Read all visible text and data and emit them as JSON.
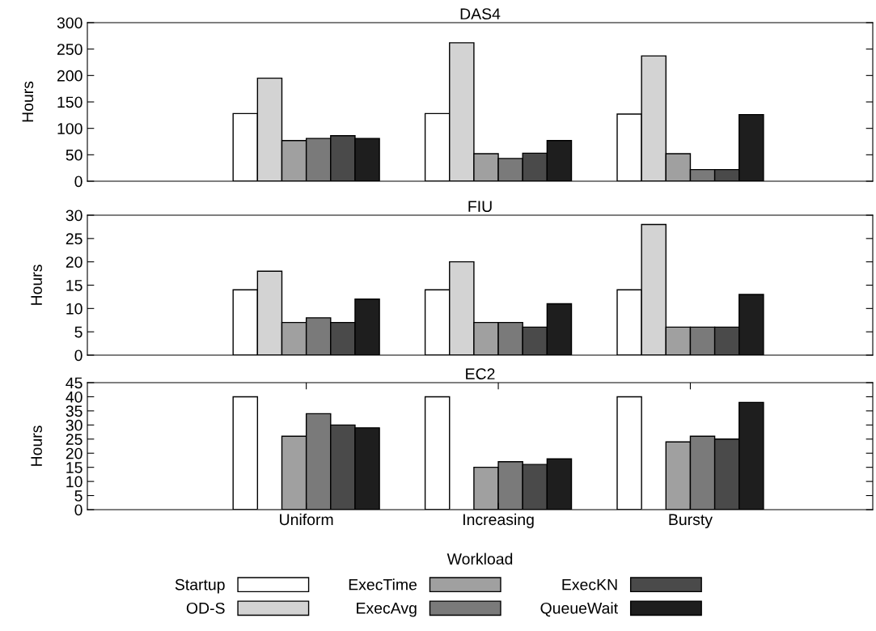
{
  "chart_data": [
    {
      "type": "bar",
      "title": "DAS4",
      "ylabel": "Hours",
      "categories": [
        null,
        null,
        null
      ],
      "ylim": [
        0,
        300
      ],
      "yticks": [
        0,
        50,
        100,
        150,
        200,
        250,
        300
      ],
      "tick_labels": "y",
      "grid": false,
      "legend": "bottom",
      "series": [
        {
          "name": "Startup",
          "color": "#ffffff",
          "values": [
            128,
            128,
            127
          ]
        },
        {
          "name": "OD-S",
          "color": "#d3d3d3",
          "values": [
            195,
            262,
            237
          ]
        },
        {
          "name": "ExecTime",
          "color": "#a0a0a0",
          "values": [
            77,
            52,
            52
          ]
        },
        {
          "name": "ExecAvg",
          "color": "#7a7a7a",
          "values": [
            81,
            43,
            22
          ]
        },
        {
          "name": "ExecKN",
          "color": "#4a4a4a",
          "values": [
            86,
            53,
            22
          ]
        },
        {
          "name": "QueueWait",
          "color": "#1e1e1e",
          "values": [
            81,
            77,
            126
          ]
        }
      ]
    },
    {
      "type": "bar",
      "title": "FIU",
      "ylabel": "Hours",
      "categories": [
        null,
        null,
        null
      ],
      "ylim": [
        0,
        30
      ],
      "yticks": [
        0,
        5,
        10,
        15,
        20,
        25,
        30
      ],
      "tick_labels": "y",
      "grid": false,
      "series": [
        {
          "color": "#ffffff",
          "values": [
            14,
            14,
            14
          ]
        },
        {
          "color": "#d3d3d3",
          "values": [
            18,
            20,
            28
          ]
        },
        {
          "color": "#a0a0a0",
          "values": [
            7,
            7,
            6
          ]
        },
        {
          "color": "#7a7a7a",
          "values": [
            8,
            7,
            6
          ]
        },
        {
          "color": "#4a4a4a",
          "values": [
            7,
            6,
            6
          ]
        },
        {
          "color": "#1e1e1e",
          "values": [
            12,
            11,
            13
          ]
        }
      ]
    },
    {
      "type": "bar",
      "title": "EC2",
      "ylabel": "Hours",
      "xlabel": "Workload",
      "categories": [
        "Uniform",
        "Increasing",
        "Bursty"
      ],
      "ylim": [
        0,
        45
      ],
      "yticks": [
        0,
        5,
        10,
        15,
        20,
        25,
        30,
        35,
        40,
        45
      ],
      "grid": false,
      "series": [
        {
          "color": "#ffffff",
          "values": [
            40,
            40,
            40
          ]
        },
        {
          "color": "#d3d3d3",
          "values": [
            0,
            0,
            0
          ]
        },
        {
          "color": "#a0a0a0",
          "values": [
            26,
            15,
            24
          ]
        },
        {
          "color": "#7a7a7a",
          "values": [
            34,
            17,
            26
          ]
        },
        {
          "color": "#4a4a4a",
          "values": [
            30,
            16,
            25
          ]
        },
        {
          "color": "#1e1e1e",
          "values": [
            29,
            18,
            38
          ]
        }
      ]
    }
  ]
}
